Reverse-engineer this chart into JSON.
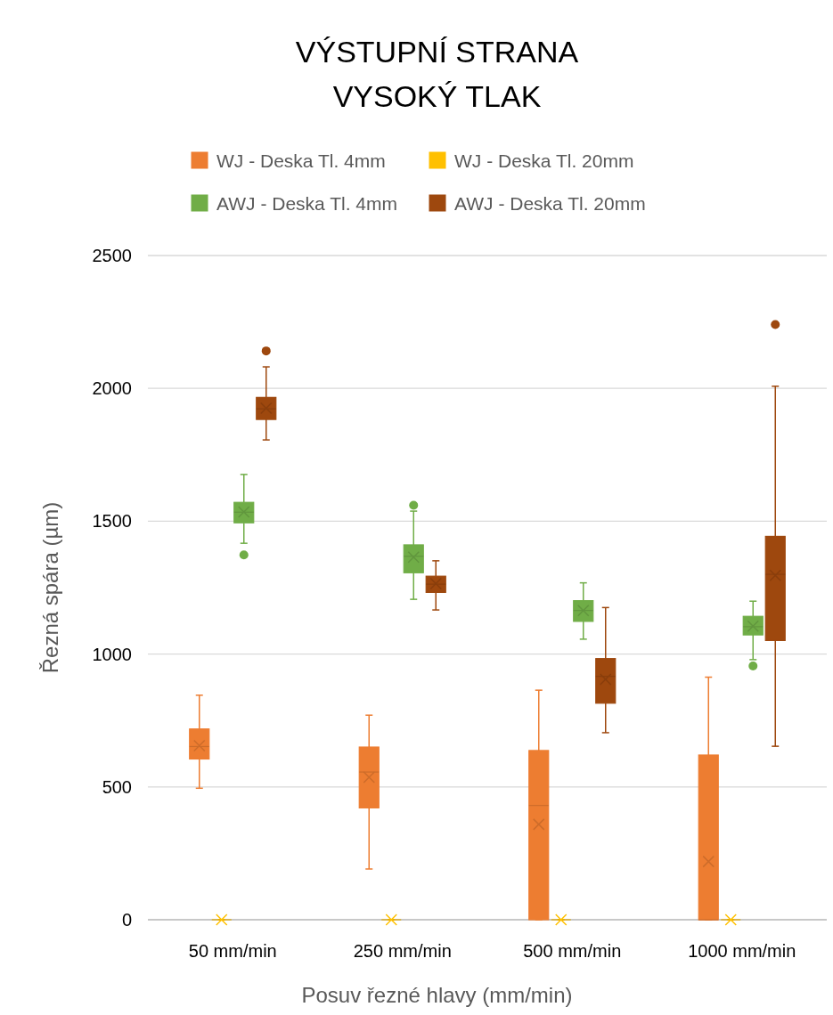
{
  "chart_data": {
    "type": "box",
    "title": "VÝSTUPNÍ STRANA\nVYSOKÝ TLAK",
    "xlabel": "Posuv řezné hlavy (mm/min)",
    "ylabel": "Řezná spára (µm)",
    "categories": [
      "50 mm/min",
      "250 mm/min",
      "500 mm/min",
      "1000 mm/min"
    ],
    "ylim": [
      0,
      2500
    ],
    "yticks": [
      0,
      500,
      1000,
      1500,
      2000,
      2500
    ],
    "grid": "y",
    "legend": "top",
    "series": [
      {
        "name": "WJ - Deska Tl. 4mm",
        "color": "#ed7d31",
        "boxes": [
          {
            "low": 495,
            "q1": 605,
            "median": 652,
            "q3": 718,
            "high": 845,
            "mean": 655
          },
          {
            "low": 191,
            "q1": 421,
            "median": 556,
            "q3": 650,
            "high": 770,
            "mean": 536
          },
          {
            "low": 0,
            "q1": 0,
            "median": 430,
            "q3": 637,
            "high": 864,
            "mean": 359
          },
          {
            "low": 0,
            "q1": 0,
            "median": 0,
            "q3": 620,
            "high": 913,
            "mean": 219
          }
        ]
      },
      {
        "name": "WJ - Deska Tl. 20mm",
        "color": "#ffc000",
        "boxes": [
          {
            "low": 0,
            "q1": 0,
            "median": 0,
            "q3": 0,
            "high": 0,
            "mean": 0
          },
          {
            "low": 0,
            "q1": 0,
            "median": 0,
            "q3": 0,
            "high": 0,
            "mean": 0
          },
          {
            "low": 0,
            "q1": 0,
            "median": 0,
            "q3": 0,
            "high": 0,
            "mean": 0
          },
          {
            "low": 0,
            "q1": 0,
            "median": 0,
            "q3": 0,
            "high": 0,
            "mean": 0
          }
        ]
      },
      {
        "name": "AWJ - Deska Tl. 4mm",
        "color": "#70ad47",
        "boxes": [
          {
            "low": 1417,
            "q1": 1494,
            "median": 1534,
            "q3": 1571,
            "high": 1676,
            "mean": 1535,
            "outliers": [
              1373
            ]
          },
          {
            "low": 1206,
            "q1": 1306,
            "median": 1368,
            "q3": 1411,
            "high": 1538,
            "mean": 1365,
            "outliers": [
              1560
            ]
          },
          {
            "low": 1056,
            "q1": 1123,
            "median": 1164,
            "q3": 1201,
            "high": 1268,
            "mean": 1164
          },
          {
            "low": 979,
            "q1": 1072,
            "median": 1103,
            "q3": 1142,
            "high": 1199,
            "mean": 1105,
            "outliers": [
              955
            ]
          }
        ]
      },
      {
        "name": "AWJ - Deska Tl. 20mm",
        "color": "#9e480e",
        "boxes": [
          {
            "low": 1806,
            "q1": 1883,
            "median": 1923,
            "q3": 1966,
            "high": 2081,
            "mean": 1925,
            "outliers": [
              2141
            ]
          },
          {
            "low": 1166,
            "q1": 1232,
            "median": 1263,
            "q3": 1293,
            "high": 1351,
            "mean": 1265
          },
          {
            "low": 704,
            "q1": 815,
            "median": 916,
            "q3": 983,
            "high": 1175,
            "mean": 905
          },
          {
            "low": 653,
            "q1": 1051,
            "median": 1300,
            "q3": 1443,
            "high": 2008,
            "mean": 1296,
            "outliers": [
              2240
            ]
          }
        ]
      }
    ]
  }
}
